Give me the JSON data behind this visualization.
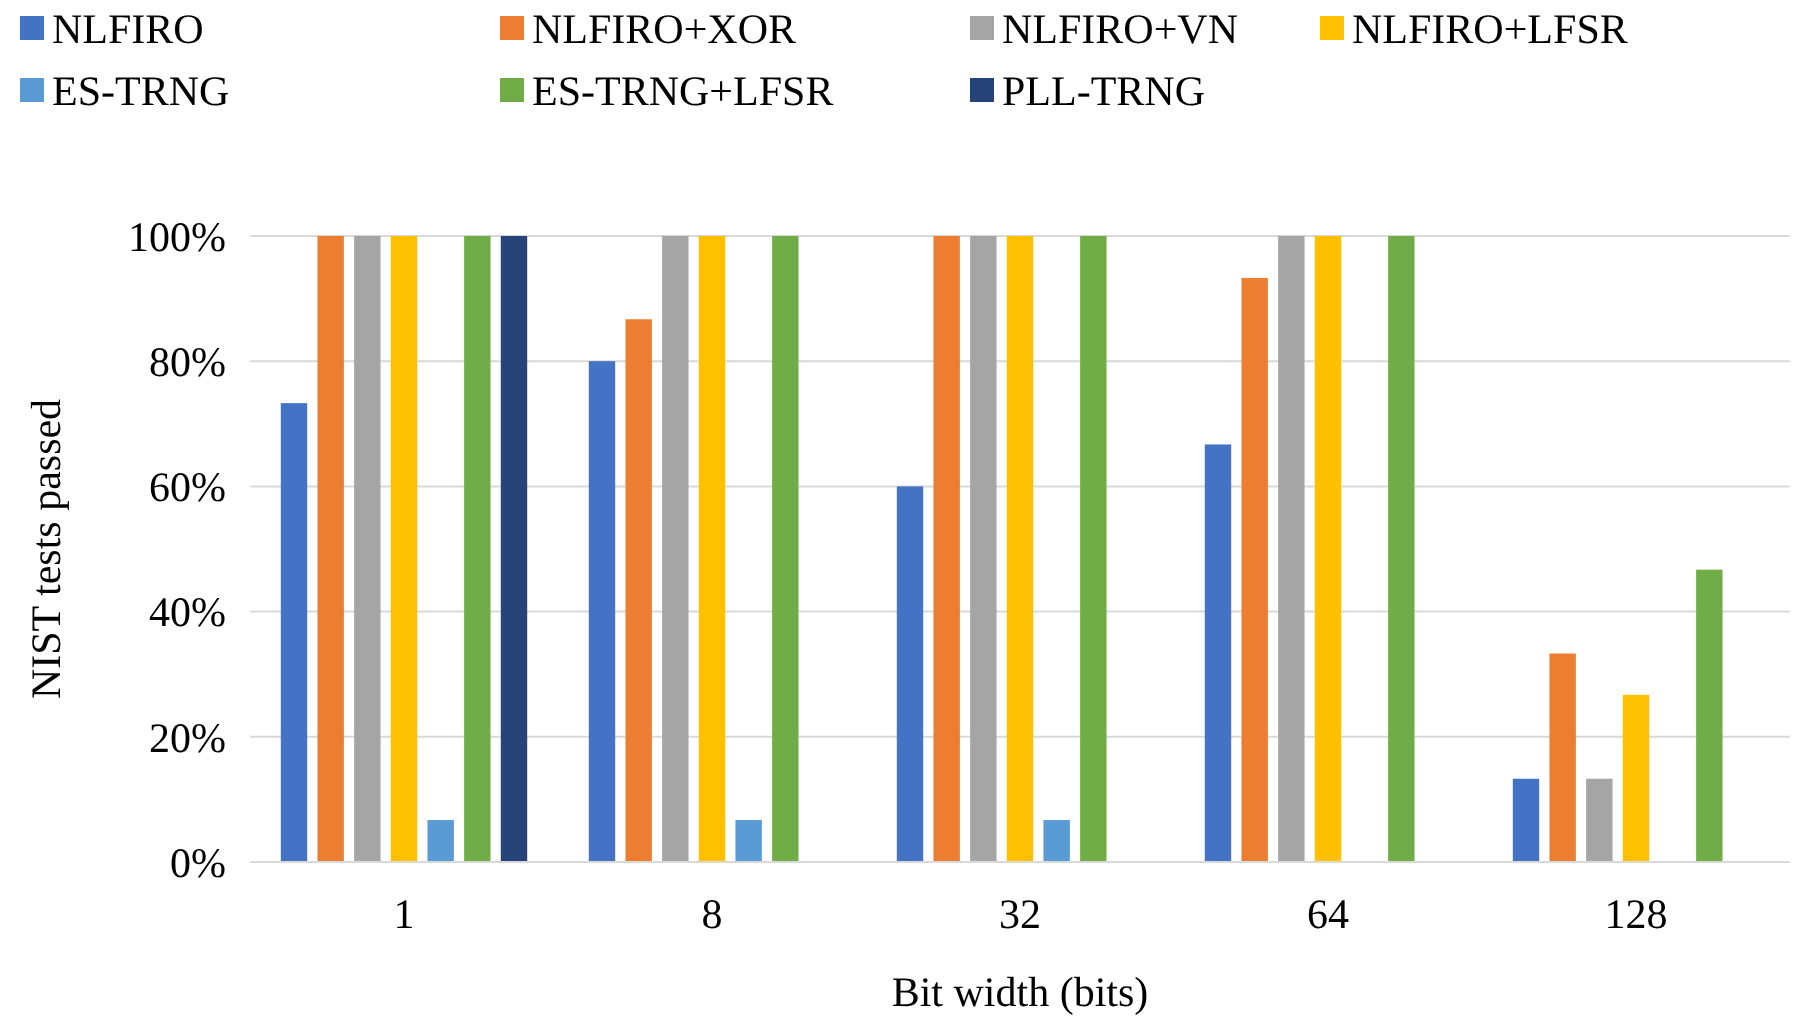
{
  "chart_data": {
    "type": "bar",
    "xlabel": "Bit width (bits)",
    "ylabel": "NIST tests passed",
    "categories": [
      "1",
      "8",
      "32",
      "64",
      "128"
    ],
    "series": [
      {
        "name": "NLFIRO",
        "color": "#4472c4",
        "values": [
          73.3,
          80,
          60,
          66.7,
          13.3
        ]
      },
      {
        "name": "NLFIRO+XOR",
        "color": "#ed7d31",
        "values": [
          100,
          86.7,
          100,
          93.3,
          33.3
        ]
      },
      {
        "name": "NLFIRO+VN",
        "color": "#a5a5a5",
        "values": [
          100,
          100,
          100,
          100,
          13.3
        ]
      },
      {
        "name": "NLFIRO+LFSR",
        "color": "#ffc000",
        "values": [
          100,
          100,
          100,
          100,
          26.7
        ]
      },
      {
        "name": "ES-TRNG",
        "color": "#5b9bd5",
        "values": [
          6.7,
          6.7,
          6.7,
          null,
          null
        ]
      },
      {
        "name": "ES-TRNG+LFSR",
        "color": "#70ad47",
        "values": [
          100,
          100,
          100,
          100,
          46.7
        ]
      },
      {
        "name": "PLL-TRNG",
        "color": "#264478",
        "values": [
          100,
          null,
          null,
          null,
          null
        ]
      }
    ],
    "ylim": [
      0,
      100
    ],
    "yticks": [
      {
        "value": 0,
        "label": "0%"
      },
      {
        "value": 20,
        "label": "20%"
      },
      {
        "value": 40,
        "label": "40%"
      },
      {
        "value": 60,
        "label": "60%"
      },
      {
        "value": 80,
        "label": "80%"
      },
      {
        "value": 100,
        "label": "100%"
      }
    ],
    "grid": "y",
    "legend": "top"
  }
}
